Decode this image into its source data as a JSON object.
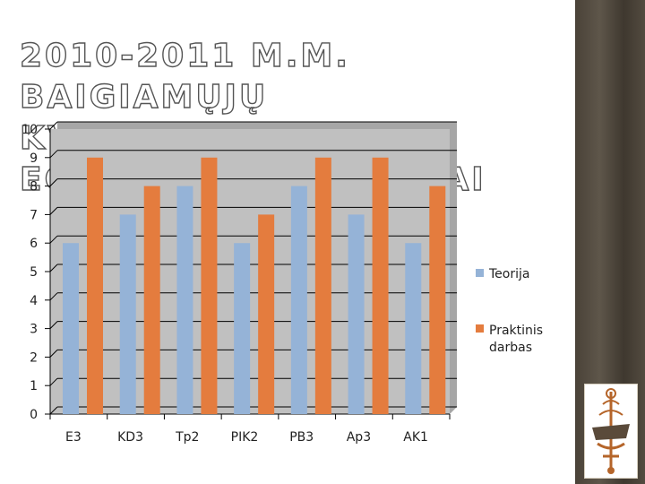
{
  "slide": {
    "title_line1": "2010-2011 m.m. baigiamųjų",
    "title_line2": "kvalifikacijos egzaminų rezultatai"
  },
  "colors": {
    "plot_background": "#c0c0c0",
    "series_teorija": "#95b3d7",
    "series_praktinis": "#e47c3e",
    "gridline": "#000000",
    "strip": "#4a4238"
  },
  "logo_icon": "school-emblem-icon",
  "chart_data": {
    "type": "bar",
    "categories": [
      "E3",
      "KD3",
      "Tp2",
      "PIK2",
      "PB3",
      "Ap3",
      "AK1"
    ],
    "series": [
      {
        "name": "Teorija",
        "values": [
          6,
          7,
          8,
          6,
          8,
          7,
          6
        ]
      },
      {
        "name": "Praktinis darbas",
        "values": [
          9,
          8,
          9,
          7,
          9,
          9,
          8
        ]
      }
    ],
    "ylim": [
      0,
      10
    ],
    "yticks": [
      0,
      1,
      2,
      3,
      4,
      5,
      6,
      7,
      8,
      9,
      10
    ],
    "ytick_labels": [
      "0",
      "1",
      "2",
      "3",
      "4",
      "5",
      "6",
      "7",
      "8",
      "9",
      "10"
    ],
    "legend_labels": [
      "Teorija",
      "Praktinis",
      "darbas"
    ],
    "grid": true,
    "legend_position": "right"
  }
}
